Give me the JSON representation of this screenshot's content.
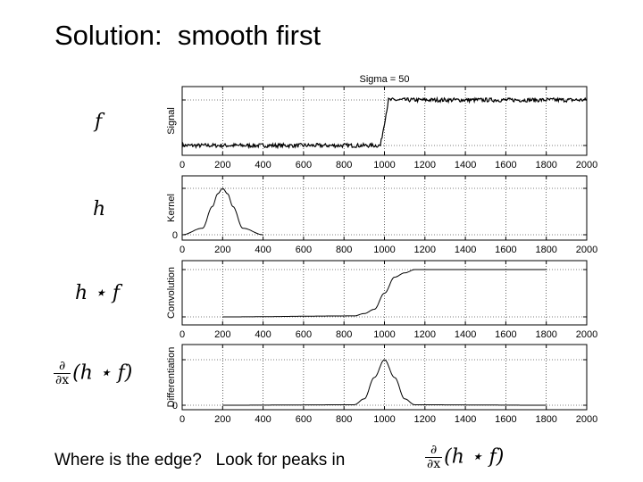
{
  "slide": {
    "title": "Solution:  smooth first",
    "bottom_text": "Where is the edge?   Look for peaks in"
  },
  "left_labels": {
    "f": "f",
    "h": "h",
    "conv": "h ⋆ f",
    "deriv_num": "∂",
    "deriv_den": "∂x",
    "deriv_expr": "(h ⋆ f)"
  },
  "chart_data": [
    {
      "type": "line",
      "title": "Sigma = 50",
      "ylabel": "Signal",
      "xlim": [
        0,
        2000
      ],
      "x_ticks": [
        0,
        200,
        400,
        600,
        800,
        1000,
        1200,
        1400,
        1600,
        1800,
        2000
      ],
      "y_tick_labels": [],
      "series": [
        {
          "x": [
            0,
            980,
            1000,
            1020,
            2000
          ],
          "y": [
            0,
            0,
            0.5,
            1,
            1
          ],
          "noise": true
        }
      ]
    },
    {
      "type": "line",
      "ylabel": "Kernel",
      "xlim": [
        0,
        2000
      ],
      "x_ticks": [
        0,
        200,
        400,
        600,
        800,
        1000,
        1200,
        1400,
        1600,
        1800,
        2000
      ],
      "y_tick_labels": [
        "0"
      ],
      "series": [
        {
          "x": [
            0,
            100,
            150,
            175,
            200,
            225,
            250,
            300,
            400
          ],
          "y": [
            0,
            0.14,
            0.61,
            0.88,
            1,
            0.88,
            0.61,
            0.14,
            0
          ]
        }
      ]
    },
    {
      "type": "line",
      "ylabel": "Convolution",
      "xlim": [
        0,
        2000
      ],
      "x_ticks": [
        0,
        200,
        400,
        600,
        800,
        1000,
        1200,
        1400,
        1600,
        1800,
        2000
      ],
      "y_tick_labels": [],
      "series": [
        {
          "x": [
            200,
            850,
            900,
            950,
            1000,
            1050,
            1100,
            1150,
            1800
          ],
          "y": [
            0,
            0.02,
            0.07,
            0.16,
            0.5,
            0.84,
            0.93,
            1,
            1
          ]
        }
      ]
    },
    {
      "type": "line",
      "ylabel": "Differentiation",
      "xlim": [
        0,
        2000
      ],
      "x_ticks": [
        0,
        200,
        400,
        600,
        800,
        1000,
        1200,
        1400,
        1600,
        1800,
        2000
      ],
      "y_tick_labels": [
        "0"
      ],
      "series": [
        {
          "x": [
            200,
            850,
            900,
            950,
            1000,
            1050,
            1100,
            1150,
            1800
          ],
          "y": [
            0,
            0.01,
            0.14,
            0.61,
            1,
            0.61,
            0.14,
            0.01,
            0
          ]
        }
      ]
    }
  ]
}
